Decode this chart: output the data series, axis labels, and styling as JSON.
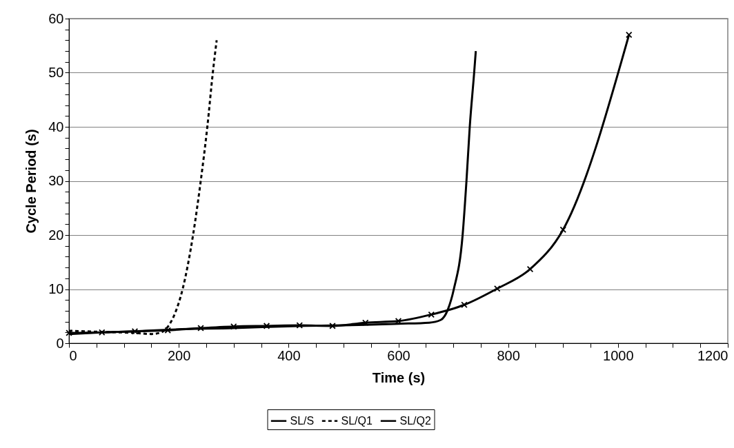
{
  "chart_data": {
    "type": "line",
    "xlabel": "Time (s)",
    "ylabel": "Cycle Period (s)",
    "xlim": [
      0,
      1200
    ],
    "ylim": [
      0,
      60
    ],
    "xticks": [
      0,
      {
        "value": 50,
        "label": null
      },
      {
        "value": 100,
        "label": null
      },
      {
        "value": 150,
        "label": null
      },
      200,
      {
        "value": 250,
        "label": null
      },
      {
        "value": 300,
        "label": null
      },
      {
        "value": 350,
        "label": null
      },
      400,
      {
        "value": 450,
        "label": null
      },
      {
        "value": 500,
        "label": null
      },
      {
        "value": 550,
        "label": null
      },
      600,
      {
        "value": 650,
        "label": null
      },
      {
        "value": 700,
        "label": null
      },
      {
        "value": 750,
        "label": null
      },
      800,
      {
        "value": 850,
        "label": null
      },
      {
        "value": 900,
        "label": null
      },
      {
        "value": 950,
        "label": null
      },
      1000,
      {
        "value": 1050,
        "label": null
      },
      {
        "value": 1100,
        "label": null
      },
      {
        "value": 1150,
        "label": null
      },
      1200
    ],
    "yticks": [
      0,
      {
        "value": 2,
        "label": null
      },
      {
        "value": 4,
        "label": null
      },
      {
        "value": 6,
        "label": null
      },
      {
        "value": 8,
        "label": null
      },
      10,
      {
        "value": 12,
        "label": null
      },
      {
        "value": 14,
        "label": null
      },
      {
        "value": 16,
        "label": null
      },
      {
        "value": 18,
        "label": null
      },
      20,
      {
        "value": 22,
        "label": null
      },
      {
        "value": 24,
        "label": null
      },
      {
        "value": 26,
        "label": null
      },
      {
        "value": 28,
        "label": null
      },
      30,
      {
        "value": 32,
        "label": null
      },
      {
        "value": 34,
        "label": null
      },
      {
        "value": 36,
        "label": null
      },
      {
        "value": 38,
        "label": null
      },
      40,
      {
        "value": 42,
        "label": null
      },
      {
        "value": 44,
        "label": null
      },
      {
        "value": 46,
        "label": null
      },
      {
        "value": 48,
        "label": null
      },
      50,
      {
        "value": 52,
        "label": null
      },
      {
        "value": 54,
        "label": null
      },
      {
        "value": 56,
        "label": null
      },
      {
        "value": 58,
        "label": null
      },
      60
    ],
    "grid": "y",
    "legend": "bottom",
    "series": [
      {
        "name": "SL/S",
        "color": "#000000",
        "line_style": "solid",
        "marker": "none",
        "x": [
          0,
          60,
          120,
          180,
          300,
          420,
          540,
          600,
          656,
          677,
          690,
          701,
          717,
          724,
          730,
          738,
          741
        ],
        "values": [
          1.7,
          2.0,
          2.2,
          2.5,
          2.8,
          3.2,
          3.4,
          3.6,
          3.8,
          4.3,
          6.2,
          10,
          20,
          30,
          40,
          50,
          54
        ]
      },
      {
        "name": "SL/Q1",
        "color": "#000000",
        "line_style": "dashed",
        "marker": "none",
        "x": [
          0,
          60,
          120,
          150,
          168,
          178,
          193,
          207,
          226,
          240,
          252,
          262,
          269
        ],
        "values": [
          2.3,
          2.1,
          1.9,
          1.7,
          2.0,
          2.8,
          5.5,
          10,
          20,
          30,
          40,
          50,
          56
        ]
      },
      {
        "name": "SL/Q2",
        "color": "#000000",
        "line_style": "solid",
        "marker": "cross",
        "x": [
          0,
          60,
          120,
          180,
          240,
          300,
          360,
          420,
          480,
          540,
          600,
          660,
          720,
          780,
          840,
          900,
          1020
        ],
        "values": [
          1.9,
          2.0,
          2.2,
          2.4,
          2.8,
          3.1,
          3.2,
          3.3,
          3.2,
          3.8,
          4.1,
          5.3,
          7.1,
          10.1,
          13.7,
          21,
          57
        ]
      }
    ]
  }
}
